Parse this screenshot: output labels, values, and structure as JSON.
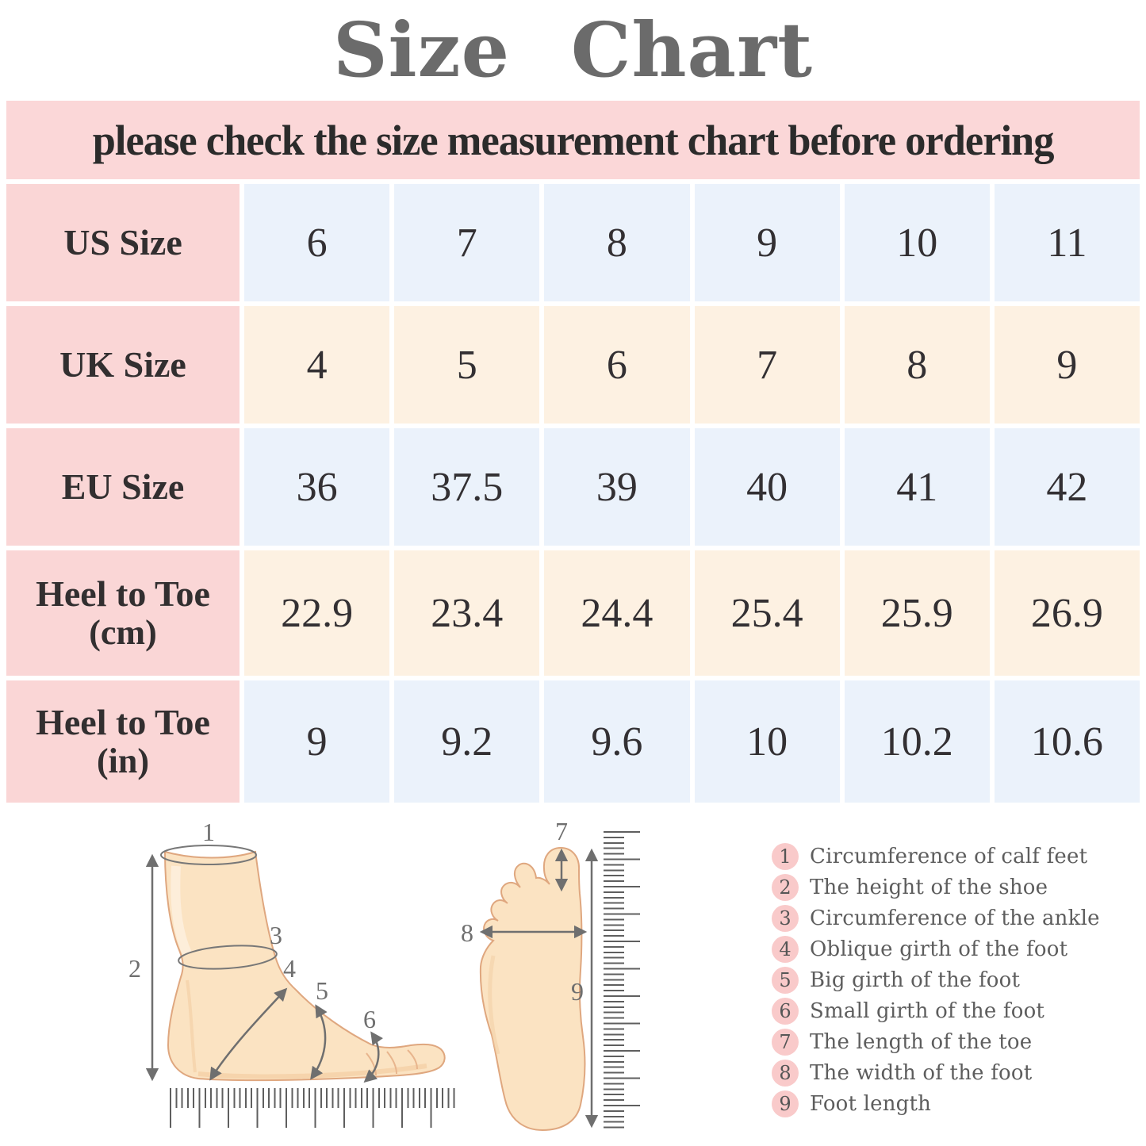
{
  "title": "Size  Chart",
  "banner": "please check the size measurement chart before ordering",
  "colors": {
    "banner_pink": "#fbd7d8",
    "label_pink": "#fad6d6",
    "row_blue": "#ebf2fb",
    "row_cream": "#fdf1e2",
    "legend_circle_pink": "#f9caca",
    "title_gray": "#6b6b6b",
    "foot_skin": "#fbe3c2"
  },
  "size_table": {
    "rows": [
      {
        "label": "US Size",
        "sub": "",
        "values": [
          "6",
          "7",
          "8",
          "9",
          "10",
          "11"
        ]
      },
      {
        "label": "UK Size",
        "sub": "",
        "values": [
          "4",
          "5",
          "6",
          "7",
          "8",
          "9"
        ]
      },
      {
        "label": "EU Size",
        "sub": "",
        "values": [
          "36",
          "37.5",
          "39",
          "40",
          "41",
          "42"
        ]
      },
      {
        "label": "Heel to Toe",
        "sub": "(cm)",
        "values": [
          "22.9",
          "23.4",
          "24.4",
          "25.4",
          "25.9",
          "26.9"
        ]
      },
      {
        "label": "Heel to Toe",
        "sub": "(in)",
        "values": [
          "9",
          "9.2",
          "9.6",
          "10",
          "10.2",
          "10.6"
        ]
      }
    ]
  },
  "chart_data": {
    "type": "table",
    "title": "Size Chart",
    "row_headers": [
      "US Size",
      "UK Size",
      "EU Size",
      "Heel to Toe (cm)",
      "Heel to Toe (in)"
    ],
    "rows": [
      [
        "6",
        "7",
        "8",
        "9",
        "10",
        "11"
      ],
      [
        "4",
        "5",
        "6",
        "7",
        "8",
        "9"
      ],
      [
        "36",
        "37.5",
        "39",
        "40",
        "41",
        "42"
      ],
      [
        "22.9",
        "23.4",
        "24.4",
        "25.4",
        "25.9",
        "26.9"
      ],
      [
        "9",
        "9.2",
        "9.6",
        "10",
        "10.2",
        "10.6"
      ]
    ]
  },
  "diagram": {
    "side_labels": {
      "calf": "1",
      "height": "2",
      "ankle": "3",
      "oblique": "4",
      "big_girth": "5",
      "small_girth": "6"
    },
    "sole_labels": {
      "toe_length": "7",
      "width": "8",
      "foot_length": "9"
    }
  },
  "legend": {
    "items": [
      {
        "num": "1",
        "text": "Circumference of calf feet"
      },
      {
        "num": "2",
        "text": "The height of the shoe"
      },
      {
        "num": "3",
        "text": "Circumference of the ankle"
      },
      {
        "num": "4",
        "text": "Oblique girth of the foot"
      },
      {
        "num": "5",
        "text": "Big girth of the foot"
      },
      {
        "num": "6",
        "text": "Small girth of the foot"
      },
      {
        "num": "7",
        "text": "The length of the toe"
      },
      {
        "num": "8",
        "text": "The width of the foot"
      },
      {
        "num": "9",
        "text": "Foot length"
      }
    ]
  }
}
